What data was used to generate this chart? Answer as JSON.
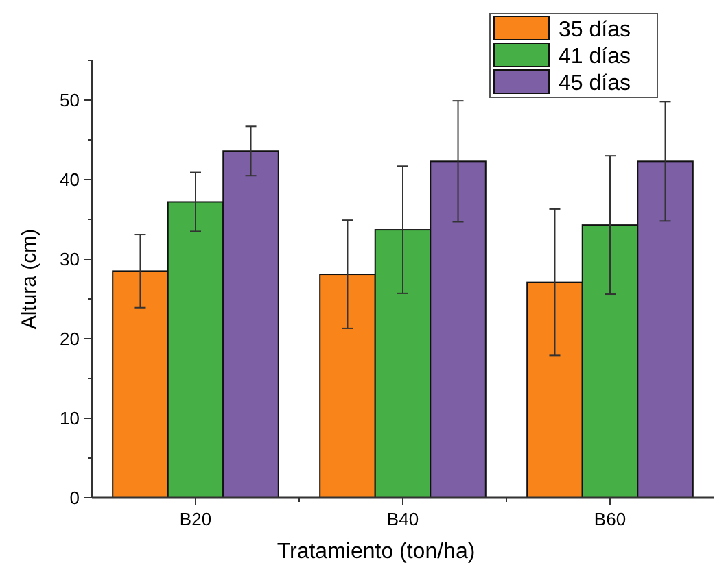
{
  "chart_data": {
    "type": "bar",
    "xlabel": "Tratamiento (ton/ha)",
    "ylabel": "Altura (cm)",
    "categories": [
      "B20",
      "B40",
      "B60"
    ],
    "series": [
      {
        "name": "35 días",
        "color": "#f8841a",
        "values": [
          28.5,
          28.1,
          27.1
        ],
        "errors": [
          4.6,
          6.8,
          9.2
        ]
      },
      {
        "name": "41 días",
        "color": "#46b047",
        "values": [
          37.2,
          33.7,
          34.3
        ],
        "errors": [
          3.7,
          8,
          8.7
        ]
      },
      {
        "name": "45 días",
        "color": "#7c5fa5",
        "values": [
          43.6,
          42.3,
          42.3
        ],
        "errors": [
          3.1,
          7.6,
          7.5
        ]
      }
    ],
    "ylim": [
      0,
      55
    ],
    "yticks": [
      0,
      {
        "value": 5,
        "label": null
      },
      10,
      {
        "value": 15,
        "label": null
      },
      20,
      {
        "value": 25,
        "label": null
      },
      30,
      {
        "value": 35,
        "label": null
      },
      40,
      {
        "value": 45,
        "label": null
      },
      50,
      {
        "value": 55,
        "label": null
      }
    ],
    "legend": "top right",
    "grid": false
  }
}
